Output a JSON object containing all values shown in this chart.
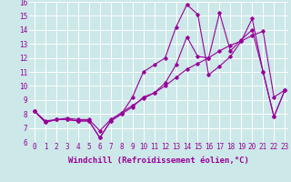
{
  "background_color": "#cce8e8",
  "grid_color": "#ffffff",
  "line_color": "#990099",
  "xlabel": "Windchill (Refroidissement éolien,°C)",
  "xlabel_fontsize": 6.5,
  "tick_fontsize": 5.5,
  "ylim": [
    6,
    16
  ],
  "xlim": [
    -0.5,
    23.3
  ],
  "yticks": [
    6,
    7,
    8,
    9,
    10,
    11,
    12,
    13,
    14,
    15,
    16
  ],
  "xticks": [
    0,
    1,
    2,
    3,
    4,
    5,
    6,
    7,
    8,
    9,
    10,
    11,
    12,
    13,
    14,
    15,
    16,
    17,
    18,
    19,
    20,
    21,
    22,
    23
  ],
  "series": [
    [
      8.2,
      7.4,
      7.6,
      7.6,
      7.5,
      7.5,
      6.3,
      7.5,
      8.0,
      9.2,
      11.0,
      11.5,
      12.0,
      14.2,
      15.8,
      15.1,
      10.8,
      11.4,
      12.1,
      13.2,
      14.8,
      11.0,
      7.8,
      9.7
    ],
    [
      8.2,
      7.5,
      7.6,
      7.7,
      7.6,
      7.6,
      6.8,
      7.6,
      8.1,
      8.6,
      9.1,
      9.5,
      10.0,
      10.6,
      11.2,
      11.6,
      12.0,
      12.5,
      12.9,
      13.2,
      13.6,
      13.9,
      9.2,
      9.7
    ],
    [
      8.2,
      7.4,
      7.6,
      7.6,
      7.5,
      7.5,
      6.3,
      7.5,
      8.0,
      8.5,
      9.2,
      9.5,
      10.2,
      11.5,
      13.5,
      12.1,
      12.0,
      15.2,
      12.5,
      13.3,
      14.0,
      11.0,
      7.8,
      9.7
    ]
  ]
}
